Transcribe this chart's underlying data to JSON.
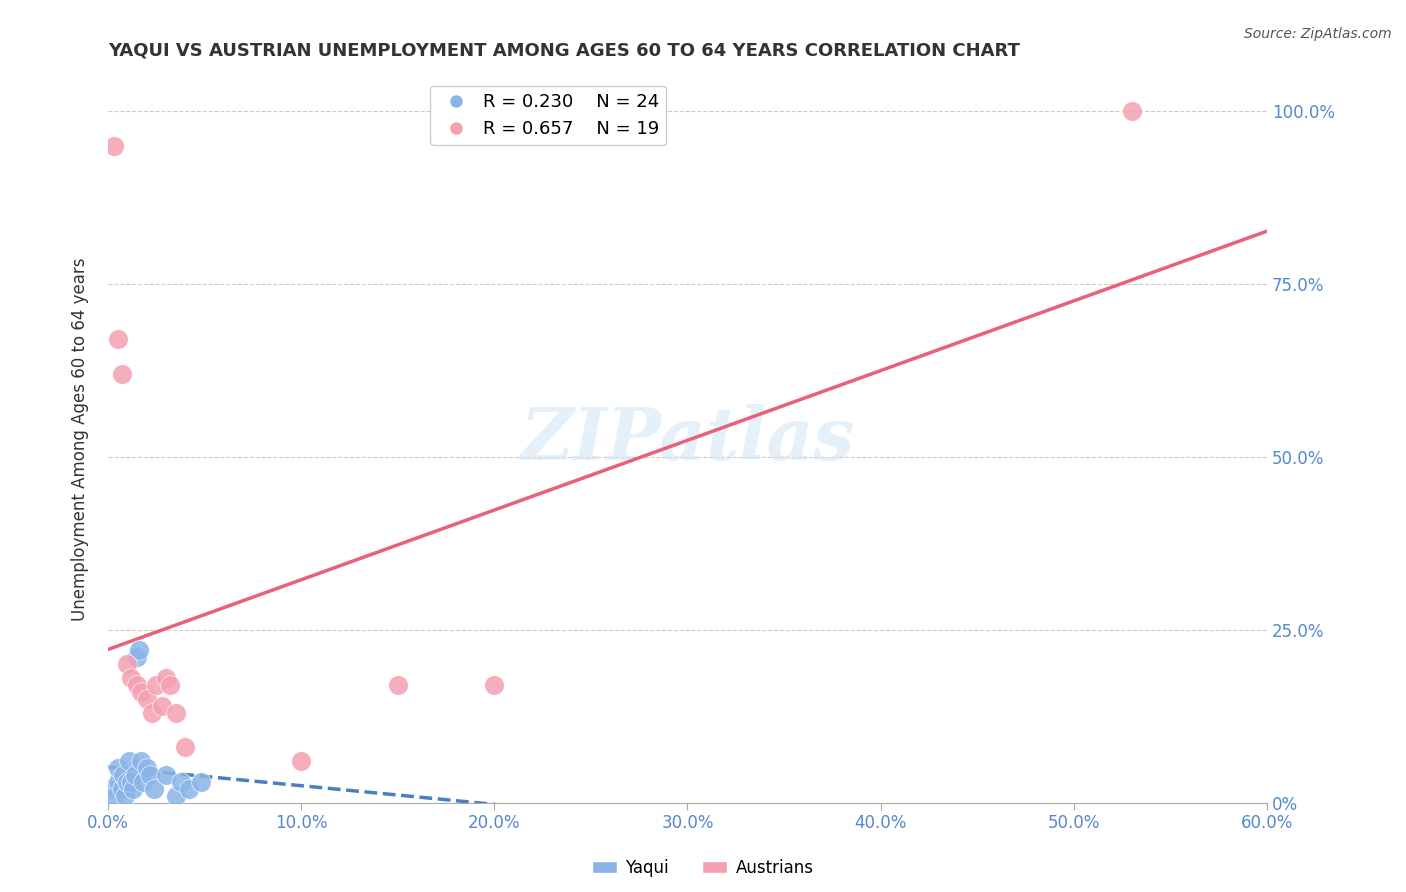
{
  "title": "YAQUI VS AUSTRIAN UNEMPLOYMENT AMONG AGES 60 TO 64 YEARS CORRELATION CHART",
  "source": "Source: ZipAtlas.com",
  "xlabel": "",
  "ylabel": "Unemployment Among Ages 60 to 64 years",
  "xlim": [
    0.0,
    0.6
  ],
  "ylim": [
    0.0,
    1.05
  ],
  "xtick_labels": [
    "0.0%",
    "10.0%",
    "20.0%",
    "30.0%",
    "40.0%",
    "50.0%",
    "60.0%"
  ],
  "xtick_vals": [
    0.0,
    0.1,
    0.2,
    0.3,
    0.4,
    0.5,
    0.6
  ],
  "ytick_labels": [
    "0%",
    "25.0%",
    "50.0%",
    "75.0%",
    "100.0%"
  ],
  "ytick_vals": [
    0.0,
    0.25,
    0.5,
    0.75,
    1.0
  ],
  "grid_color": "#cccccc",
  "background_color": "#ffffff",
  "yaqui_color": "#8ab4e8",
  "austrian_color": "#f4a0b0",
  "yaqui_R": 0.23,
  "yaqui_N": 24,
  "austrian_R": 0.657,
  "austrian_N": 19,
  "legend_label_yaqui": "Yaqui",
  "legend_label_austrian": "Austrians",
  "watermark": "ZIPatlas",
  "yaqui_x": [
    0.0,
    0.003,
    0.005,
    0.005,
    0.007,
    0.008,
    0.009,
    0.01,
    0.011,
    0.012,
    0.013,
    0.014,
    0.015,
    0.016,
    0.017,
    0.018,
    0.02,
    0.022,
    0.024,
    0.03,
    0.035,
    0.038,
    0.042,
    0.048
  ],
  "yaqui_y": [
    0.02,
    0.01,
    0.03,
    0.05,
    0.02,
    0.04,
    0.01,
    0.03,
    0.06,
    0.03,
    0.02,
    0.04,
    0.21,
    0.22,
    0.06,
    0.03,
    0.05,
    0.04,
    0.02,
    0.04,
    0.01,
    0.03,
    0.02,
    0.03
  ],
  "austrian_x": [
    0.003,
    0.005,
    0.007,
    0.01,
    0.012,
    0.015,
    0.017,
    0.02,
    0.023,
    0.025,
    0.028,
    0.03,
    0.032,
    0.035,
    0.04,
    0.1,
    0.15,
    0.2,
    0.53
  ],
  "austrian_y": [
    0.95,
    0.67,
    0.62,
    0.2,
    0.18,
    0.17,
    0.16,
    0.15,
    0.13,
    0.17,
    0.14,
    0.18,
    0.17,
    0.13,
    0.08,
    0.06,
    0.17,
    0.17,
    1.0
  ]
}
